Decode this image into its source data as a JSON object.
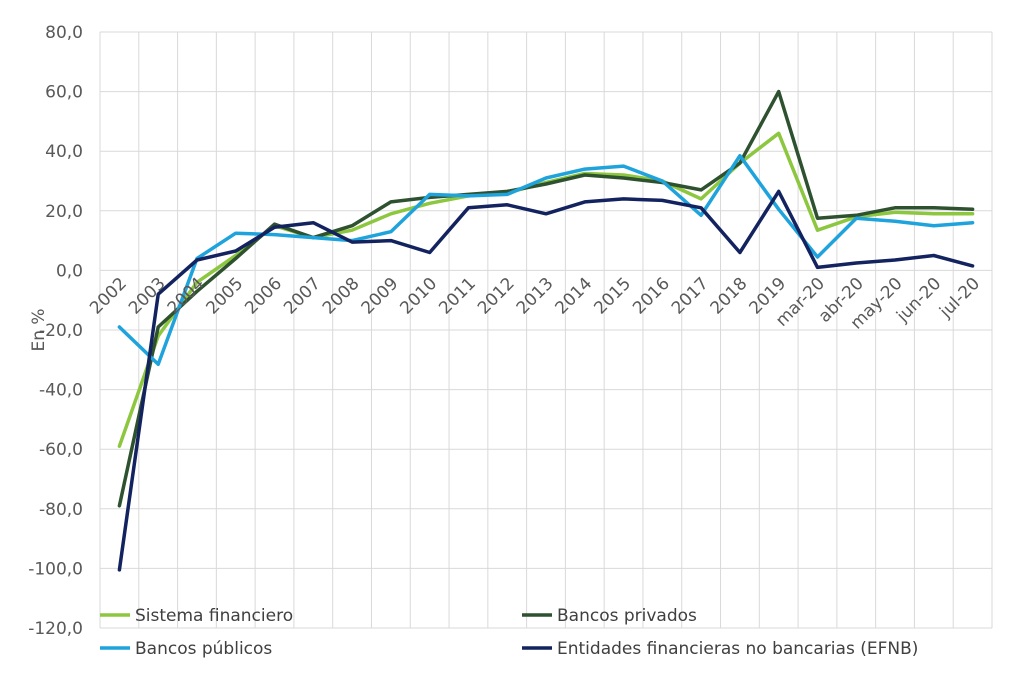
{
  "chart_data": {
    "type": "line",
    "title": "",
    "ylabel": "En %",
    "xlabel": "",
    "ylim": [
      -120,
      80
    ],
    "ytick_step": 20,
    "ytick_labels": [
      "80,0",
      "60,0",
      "40,0",
      "20,0",
      "0,0",
      "-20,0",
      "-40,0",
      "-60,0",
      "-80,0",
      "-100,0",
      "-120,0"
    ],
    "grid": true,
    "legend_position": "bottom",
    "categories": [
      "2002",
      "2003",
      "2004",
      "2005",
      "2006",
      "2007",
      "2008",
      "2009",
      "2010",
      "2011",
      "2012",
      "2013",
      "2014",
      "2015",
      "2016",
      "2017",
      "2018",
      "2019",
      "mar-20",
      "abr-20",
      "may-20",
      "jun-20",
      "jul-20"
    ],
    "series": [
      {
        "name": "Sistema financiero",
        "color": "#8dc63f",
        "values": [
          -59,
          -22,
          -4,
          5,
          15,
          11,
          13.5,
          19,
          22.5,
          25,
          26,
          29.5,
          32.5,
          32,
          30,
          24,
          36,
          46,
          13.5,
          18,
          19.5,
          19,
          19
        ]
      },
      {
        "name": "Bancos privados",
        "color": "#2e5130",
        "values": [
          -79,
          -19,
          -7,
          4,
          15.5,
          11,
          15,
          23,
          24.5,
          25.5,
          26.5,
          29,
          32,
          31,
          29.5,
          27,
          36,
          60,
          17.5,
          18.5,
          21,
          21,
          20.5
        ]
      },
      {
        "name": "Bancos públicos",
        "color": "#1fa3dc",
        "values": [
          -19,
          -31.5,
          4,
          12.5,
          12,
          11,
          10,
          13,
          25.5,
          25,
          25.5,
          31,
          34,
          35,
          30,
          18.5,
          38.5,
          20.5,
          4.5,
          17.5,
          16.5,
          15,
          16
        ]
      },
      {
        "name": "Entidades financieras no bancarias (EFNB)",
        "color": "#13235f",
        "values": [
          -100.5,
          -8,
          3.5,
          6.5,
          14.5,
          16,
          9.5,
          10,
          6,
          21,
          22,
          19,
          23,
          24,
          23.5,
          21,
          6,
          26.5,
          1,
          2.5,
          3.5,
          5,
          1.5
        ]
      }
    ]
  }
}
